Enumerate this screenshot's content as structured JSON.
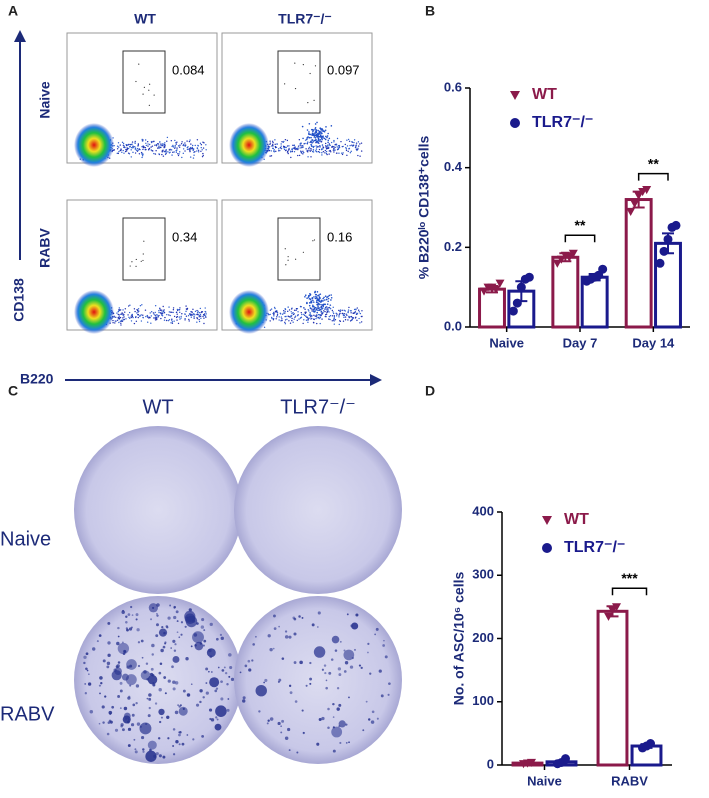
{
  "panels": [
    "A",
    "B",
    "C",
    "D"
  ],
  "flow": {
    "columns": [
      "WT",
      "TLR7⁻/⁻"
    ],
    "rows": [
      "Naive",
      "RABV"
    ],
    "gates": [
      [
        0.084,
        0.097
      ],
      [
        0.34,
        0.16
      ]
    ],
    "y_label": "CD138",
    "x_label": "B220"
  },
  "elispot": {
    "columns": [
      "WT",
      "TLR7⁻/⁻"
    ],
    "rows": [
      "Naive",
      "RABV"
    ]
  },
  "chart_data": [
    {
      "type": "bar",
      "y_label": "% B220ˡᵒ CD138⁺cells",
      "categories": [
        "Naive",
        "Day 7",
        "Day 14"
      ],
      "series": [
        {
          "name": "WT",
          "color": "#8b1a4a",
          "marker": "triangle",
          "values": [
            0.095,
            0.175,
            0.32
          ],
          "errors": [
            0.008,
            0.01,
            0.02
          ],
          "points": [
            [
              0.09,
              0.1,
              0.1,
              0.095,
              0.11
            ],
            [
              0.16,
              0.17,
              0.18,
              0.175,
              0.185
            ],
            [
              0.29,
              0.31,
              0.33,
              0.34,
              0.345
            ]
          ]
        },
        {
          "name": "TLR7⁻/⁻",
          "color": "#1a1a8c",
          "marker": "circle",
          "values": [
            0.09,
            0.125,
            0.21
          ],
          "errors": [
            0.025,
            0.008,
            0.025
          ],
          "points": [
            [
              0.04,
              0.06,
              0.1,
              0.12,
              0.125
            ],
            [
              0.115,
              0.12,
              0.125,
              0.13,
              0.145
            ],
            [
              0.16,
              0.19,
              0.22,
              0.25,
              0.255
            ]
          ]
        }
      ],
      "significance": [
        null,
        "**",
        "**"
      ],
      "ylim": [
        0,
        0.6
      ],
      "yticks": [
        {
          "value": 0,
          "label": "0.0"
        },
        0.2,
        0.4,
        0.6
      ]
    },
    {
      "type": "bar",
      "y_label": "No. of ASC/10⁶ cells",
      "categories": [
        "Naive",
        "RABV"
      ],
      "series": [
        {
          "name": "WT",
          "color": "#8b1a4a",
          "marker": "triangle",
          "values": [
            3,
            243
          ],
          "errors": [
            1,
            8
          ],
          "points": [
            [
              2,
              3,
              4
            ],
            [
              235,
              245,
              250
            ]
          ]
        },
        {
          "name": "TLR7⁻/⁻",
          "color": "#1a1a8c",
          "marker": "circle",
          "values": [
            5,
            30
          ],
          "errors": [
            2,
            3
          ],
          "points": [
            [
              2,
              4,
              10
            ],
            [
              27,
              30,
              34
            ]
          ]
        }
      ],
      "significance": [
        null,
        "***"
      ],
      "ylim": [
        0,
        400
      ],
      "yticks": [
        0,
        100,
        200,
        300,
        400
      ]
    }
  ]
}
